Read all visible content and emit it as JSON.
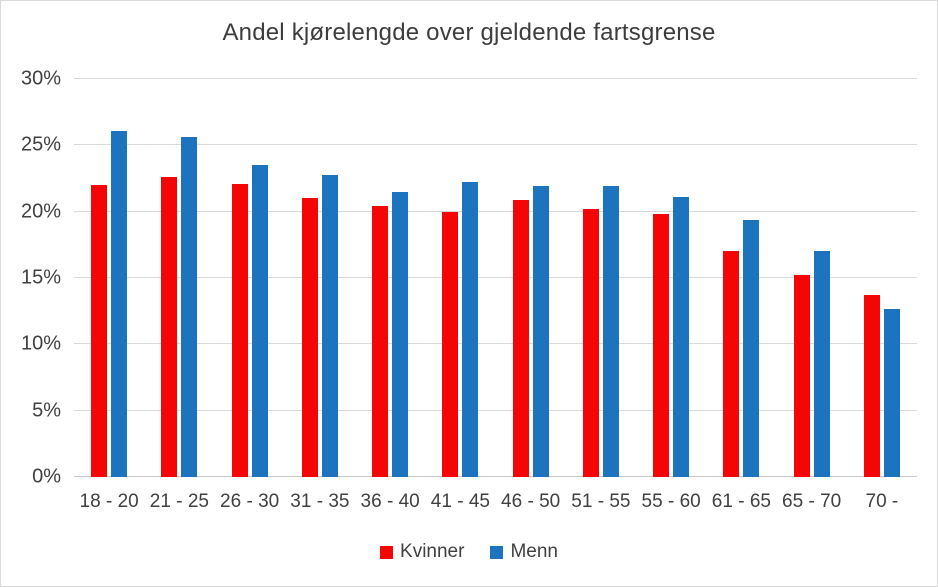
{
  "chart_data": {
    "type": "bar",
    "title": "Andel kjørelengde over gjeldende fartsgrense",
    "categories": [
      "18 - 20",
      "21 - 25",
      "26 - 30",
      "31 - 35",
      "36 - 40",
      "41 - 45",
      "46 - 50",
      "51 - 55",
      "55 - 60",
      "61 - 65",
      "65 - 70",
      "70 -"
    ],
    "series": [
      {
        "name": "Kvinner",
        "color": "#f40607",
        "values": [
          22.0,
          22.6,
          22.1,
          21.0,
          20.4,
          20.0,
          20.9,
          20.2,
          19.8,
          17.0,
          15.2,
          13.7
        ]
      },
      {
        "name": "Menn",
        "color": "#1b74bd",
        "values": [
          26.1,
          25.6,
          23.5,
          22.8,
          21.5,
          22.2,
          21.9,
          21.9,
          21.1,
          19.4,
          17.0,
          12.7
        ]
      }
    ],
    "ylim": [
      0,
      30
    ],
    "yticks": [
      0,
      5,
      10,
      15,
      20,
      25,
      30
    ],
    "ytick_labels": [
      "0%",
      "5%",
      "10%",
      "15%",
      "20%",
      "25%",
      "30%"
    ],
    "xlabel": "",
    "ylabel": "",
    "grid": "horizontal",
    "legend_position": "bottom"
  },
  "colors": {
    "grid": "#d9d9d9",
    "axis_text": "#404040",
    "title_text": "#3d3d3d",
    "background": "#ffffff",
    "border": "#d9d9d9"
  }
}
